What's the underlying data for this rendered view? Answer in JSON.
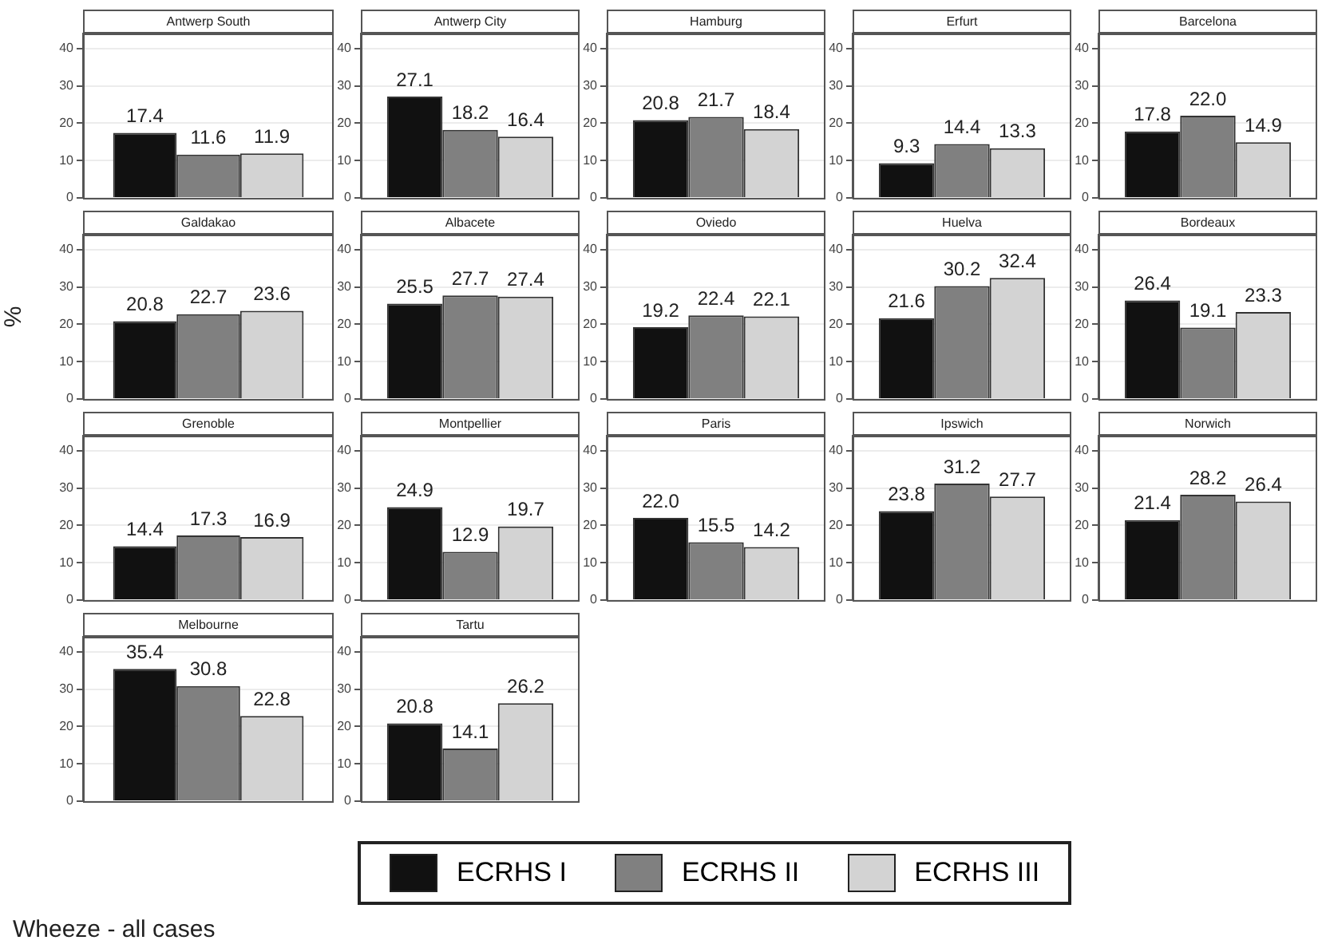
{
  "chart_data": [
    {
      "type": "bar",
      "title": "Antwerp South",
      "categories": [
        null
      ],
      "series": [
        {
          "name": "ECRHS I",
          "color": "#111111",
          "values": [
            17.4
          ]
        },
        {
          "name": "ECRHS II",
          "color": "#808080",
          "values": [
            11.6
          ]
        },
        {
          "name": "ECRHS III",
          "color": "#d3d3d3",
          "values": [
            11.9
          ]
        }
      ],
      "ylim": [
        0,
        44
      ],
      "yticks": [
        0,
        10,
        20,
        30,
        40
      ],
      "grid": "y",
      "data_labels": true,
      "tick_labels": "y",
      "legend": "bottom"
    },
    {
      "type": "bar",
      "title": "Antwerp City",
      "categories": [
        null
      ],
      "series": [
        {
          "color": "#111111",
          "values": [
            27.1
          ]
        },
        {
          "color": "#808080",
          "values": [
            18.2
          ]
        },
        {
          "color": "#d3d3d3",
          "values": [
            16.4
          ]
        }
      ],
      "ylim": [
        0,
        44
      ],
      "yticks": [
        0,
        10,
        20,
        30,
        40
      ],
      "grid": "y",
      "data_labels": true,
      "tick_labels": "y"
    },
    {
      "type": "bar",
      "title": "Hamburg",
      "categories": [
        null
      ],
      "series": [
        {
          "color": "#111111",
          "values": [
            20.8
          ]
        },
        {
          "color": "#808080",
          "values": [
            21.7
          ]
        },
        {
          "color": "#d3d3d3",
          "values": [
            18.4
          ]
        }
      ],
      "ylim": [
        0,
        44
      ],
      "yticks": [
        0,
        10,
        20,
        30,
        40
      ],
      "grid": "y",
      "data_labels": true,
      "tick_labels": "y"
    },
    {
      "type": "bar",
      "title": "Erfurt",
      "categories": [
        null
      ],
      "series": [
        {
          "color": "#111111",
          "values": [
            9.3
          ]
        },
        {
          "color": "#808080",
          "values": [
            14.4
          ]
        },
        {
          "color": "#d3d3d3",
          "values": [
            13.3
          ]
        }
      ],
      "ylim": [
        0,
        44
      ],
      "yticks": [
        0,
        10,
        20,
        30,
        40
      ],
      "grid": "y",
      "data_labels": true,
      "tick_labels": "y"
    },
    {
      "type": "bar",
      "title": "Barcelona",
      "categories": [
        null
      ],
      "series": [
        {
          "color": "#111111",
          "values": [
            17.8
          ]
        },
        {
          "color": "#808080",
          "values": [
            22.0
          ],
          "value_labels": [
            "22.0"
          ]
        },
        {
          "color": "#d3d3d3",
          "values": [
            14.9
          ]
        }
      ],
      "ylim": [
        0,
        44
      ],
      "yticks": [
        0,
        10,
        20,
        30,
        40
      ],
      "grid": "y",
      "data_labels": true,
      "tick_labels": "y"
    },
    {
      "type": "bar",
      "title": "Galdakao",
      "ylabel": "%",
      "categories": [
        null
      ],
      "series": [
        {
          "color": "#111111",
          "values": [
            20.8
          ]
        },
        {
          "color": "#808080",
          "values": [
            22.7
          ]
        },
        {
          "color": "#d3d3d3",
          "values": [
            23.6
          ]
        }
      ],
      "ylim": [
        0,
        44
      ],
      "yticks": [
        0,
        10,
        20,
        30,
        40
      ],
      "grid": "y",
      "data_labels": true,
      "tick_labels": "y"
    },
    {
      "type": "bar",
      "title": "Albacete",
      "categories": [
        null
      ],
      "series": [
        {
          "color": "#111111",
          "values": [
            25.5
          ]
        },
        {
          "color": "#808080",
          "values": [
            27.7
          ]
        },
        {
          "color": "#d3d3d3",
          "values": [
            27.4
          ]
        }
      ],
      "ylim": [
        0,
        44
      ],
      "yticks": [
        0,
        10,
        20,
        30,
        40
      ],
      "grid": "y",
      "data_labels": true,
      "tick_labels": "y"
    },
    {
      "type": "bar",
      "title": "Oviedo",
      "categories": [
        null
      ],
      "series": [
        {
          "color": "#111111",
          "values": [
            19.2
          ]
        },
        {
          "color": "#808080",
          "values": [
            22.4
          ]
        },
        {
          "color": "#d3d3d3",
          "values": [
            22.1
          ]
        }
      ],
      "ylim": [
        0,
        44
      ],
      "yticks": [
        0,
        10,
        20,
        30,
        40
      ],
      "grid": "y",
      "data_labels": true,
      "tick_labels": "y"
    },
    {
      "type": "bar",
      "title": "Huelva",
      "categories": [
        null
      ],
      "series": [
        {
          "color": "#111111",
          "values": [
            21.6
          ]
        },
        {
          "color": "#808080",
          "values": [
            30.2
          ]
        },
        {
          "color": "#d3d3d3",
          "values": [
            32.4
          ]
        }
      ],
      "ylim": [
        0,
        44
      ],
      "yticks": [
        0,
        10,
        20,
        30,
        40
      ],
      "grid": "y",
      "data_labels": true,
      "tick_labels": "y"
    },
    {
      "type": "bar",
      "title": "Bordeaux",
      "categories": [
        null
      ],
      "series": [
        {
          "color": "#111111",
          "values": [
            26.4
          ]
        },
        {
          "color": "#808080",
          "values": [
            19.1
          ]
        },
        {
          "color": "#d3d3d3",
          "values": [
            23.3
          ]
        }
      ],
      "ylim": [
        0,
        44
      ],
      "yticks": [
        0,
        10,
        20,
        30,
        40
      ],
      "grid": "y",
      "data_labels": true,
      "tick_labels": "y"
    },
    {
      "type": "bar",
      "title": "Grenoble",
      "categories": [
        null
      ],
      "series": [
        {
          "color": "#111111",
          "values": [
            14.4
          ]
        },
        {
          "color": "#808080",
          "values": [
            17.3
          ]
        },
        {
          "color": "#d3d3d3",
          "values": [
            16.9
          ]
        }
      ],
      "ylim": [
        0,
        44
      ],
      "yticks": [
        0,
        10,
        20,
        30,
        40
      ],
      "grid": "y",
      "data_labels": true,
      "tick_labels": "y"
    },
    {
      "type": "bar",
      "title": "Montpellier",
      "categories": [
        null
      ],
      "series": [
        {
          "color": "#111111",
          "values": [
            24.9
          ]
        },
        {
          "color": "#808080",
          "values": [
            12.9
          ]
        },
        {
          "color": "#d3d3d3",
          "values": [
            19.7
          ]
        }
      ],
      "ylim": [
        0,
        44
      ],
      "yticks": [
        0,
        10,
        20,
        30,
        40
      ],
      "grid": "y",
      "data_labels": true,
      "tick_labels": "y"
    },
    {
      "type": "bar",
      "title": "Paris",
      "categories": [
        null
      ],
      "series": [
        {
          "color": "#111111",
          "values": [
            22.0
          ],
          "value_labels": [
            "22.0"
          ]
        },
        {
          "color": "#808080",
          "values": [
            15.5
          ]
        },
        {
          "color": "#d3d3d3",
          "values": [
            14.2
          ]
        }
      ],
      "ylim": [
        0,
        44
      ],
      "yticks": [
        0,
        10,
        20,
        30,
        40
      ],
      "grid": "y",
      "data_labels": true,
      "tick_labels": "y"
    },
    {
      "type": "bar",
      "title": "Ipswich",
      "categories": [
        null
      ],
      "series": [
        {
          "color": "#111111",
          "values": [
            23.8
          ]
        },
        {
          "color": "#808080",
          "values": [
            31.2
          ]
        },
        {
          "color": "#d3d3d3",
          "values": [
            27.7
          ]
        }
      ],
      "ylim": [
        0,
        44
      ],
      "yticks": [
        0,
        10,
        20,
        30,
        40
      ],
      "grid": "y",
      "data_labels": true,
      "tick_labels": "y"
    },
    {
      "type": "bar",
      "title": "Norwich",
      "categories": [
        null
      ],
      "series": [
        {
          "color": "#111111",
          "values": [
            21.4
          ]
        },
        {
          "color": "#808080",
          "values": [
            28.2
          ]
        },
        {
          "color": "#d3d3d3",
          "values": [
            26.4
          ]
        }
      ],
      "ylim": [
        0,
        44
      ],
      "yticks": [
        0,
        10,
        20,
        30,
        40
      ],
      "grid": "y",
      "data_labels": true,
      "tick_labels": "y"
    },
    {
      "type": "bar",
      "title": "Melbourne",
      "categories": [
        null
      ],
      "series": [
        {
          "color": "#111111",
          "values": [
            35.4
          ]
        },
        {
          "color": "#808080",
          "values": [
            30.8
          ]
        },
        {
          "color": "#d3d3d3",
          "values": [
            22.8
          ]
        }
      ],
      "ylim": [
        0,
        44
      ],
      "yticks": [
        0,
        10,
        20,
        30,
        40
      ],
      "grid": "y",
      "data_labels": true,
      "tick_labels": "y"
    },
    {
      "type": "bar",
      "title": "Tartu",
      "categories": [
        null
      ],
      "series": [
        {
          "color": "#111111",
          "values": [
            20.8
          ]
        },
        {
          "color": "#808080",
          "values": [
            14.1
          ]
        },
        {
          "color": "#d3d3d3",
          "values": [
            26.2
          ]
        }
      ],
      "ylim": [
        0,
        44
      ],
      "yticks": [
        0,
        10,
        20,
        30,
        40
      ],
      "grid": "y",
      "data_labels": true,
      "tick_labels": "y",
      "annotations": [
        "Wheeze - all cases"
      ]
    }
  ]
}
